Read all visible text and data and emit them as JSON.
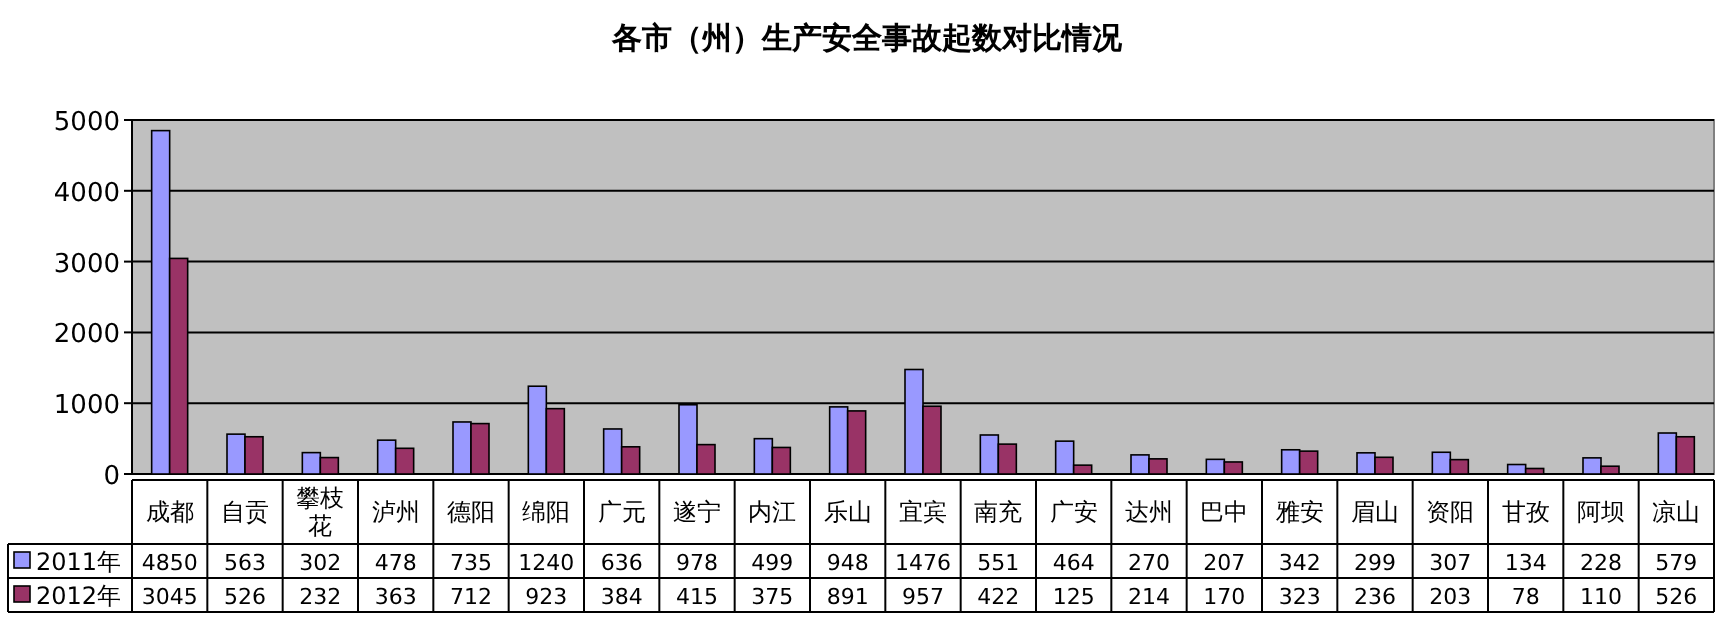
{
  "chart_data": {
    "type": "bar",
    "title": "各市（州）生产安全事故起数对比情况",
    "categories": [
      "成都",
      "自贡",
      "攀枝花",
      "泸州",
      "德阳",
      "绵阳",
      "广元",
      "遂宁",
      "内江",
      "乐山",
      "宜宾",
      "南充",
      "广安",
      "达州",
      "巴中",
      "雅安",
      "眉山",
      "资阳",
      "甘孜",
      "阿坝",
      "凉山"
    ],
    "series": [
      {
        "name": "2011年",
        "color": "#9999ff",
        "values": [
          4850,
          563,
          302,
          478,
          735,
          1240,
          636,
          978,
          499,
          948,
          1476,
          551,
          464,
          270,
          207,
          342,
          299,
          307,
          134,
          228,
          579
        ]
      },
      {
        "name": "2012年",
        "color": "#993366",
        "values": [
          3045,
          526,
          232,
          363,
          712,
          923,
          384,
          415,
          375,
          891,
          957,
          422,
          125,
          214,
          170,
          323,
          236,
          203,
          78,
          110,
          526
        ]
      }
    ],
    "ylim": [
      0,
      5000
    ],
    "yticks": [
      0,
      1000,
      2000,
      3000,
      4000,
      5000
    ],
    "grid": "y",
    "data_labels": true,
    "legend": "bottom"
  }
}
